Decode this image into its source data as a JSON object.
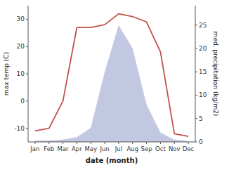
{
  "chart_data": {
    "type": "line",
    "categories": [
      "Jan",
      "Feb",
      "Mar",
      "Apr",
      "May",
      "Jun",
      "Jul",
      "Aug",
      "Sep",
      "Oct",
      "Nov",
      "Dec"
    ],
    "series": [
      {
        "type": "area",
        "axis": "y2",
        "color": "#b8bedd",
        "values": [
          0.3,
          0.3,
          0.5,
          1,
          3,
          15,
          25,
          20,
          8,
          2,
          0.5,
          0.2
        ]
      },
      {
        "type": "line",
        "color": "#c0524a",
        "values": [
          -11,
          -10,
          0,
          27,
          27,
          28,
          32,
          31,
          29,
          18,
          -12,
          -13
        ]
      }
    ],
    "xlabel": "date (month)",
    "ylabel": "max temp (C)",
    "y2label": "med. precipitation (kg/m2)",
    "ylim": [
      -15,
      35
    ],
    "yticks": [
      -10,
      0,
      10,
      20,
      30
    ],
    "y2lim": [
      0,
      29.17
    ],
    "y2ticks": [
      0,
      5,
      10,
      15,
      20,
      25
    ],
    "grid": false
  }
}
